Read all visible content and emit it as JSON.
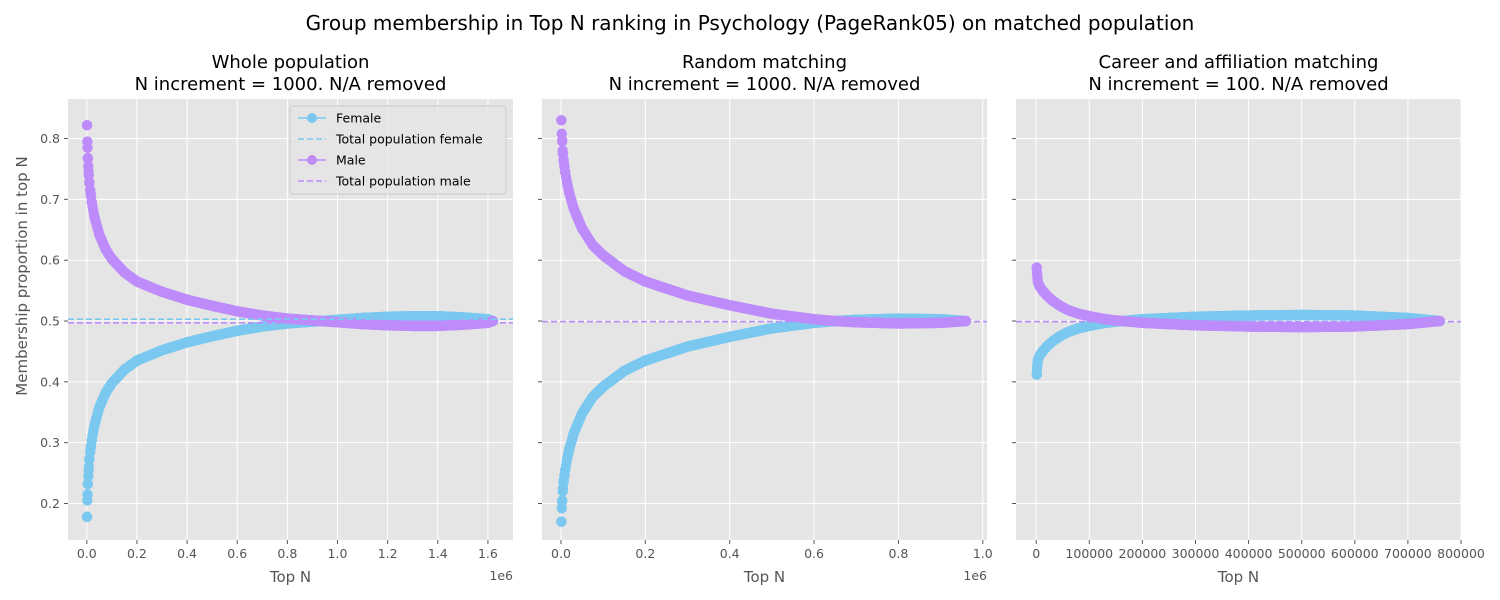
{
  "figure_title": "Group membership in Top N ranking in Psychology (PageRank05) on matched population",
  "colors": {
    "female": "#7ac8f0",
    "male": "#be8cfa",
    "panel_bg": "#e5e5e5",
    "grid": "#ffffff"
  },
  "ylabel": "Membership proportion in top N",
  "legend": {
    "female": "Female",
    "total_female": "Total population female",
    "male": "Male",
    "total_male": "Total population male"
  },
  "chart_data": [
    {
      "type": "line",
      "title_line1": "Whole population",
      "title_line2": "N increment = 1000. N/A removed",
      "xlabel": "Top N",
      "x_offset_text": "1e6",
      "x_scale": 1000000,
      "xlim": [
        -75000,
        1700000
      ],
      "ylim": [
        0.14,
        0.865
      ],
      "xticks": [
        0,
        200000,
        400000,
        600000,
        800000,
        1000000,
        1200000,
        1400000,
        1600000
      ],
      "xtick_labels": [
        "0.0",
        "0.2",
        "0.4",
        "0.6",
        "0.8",
        "1.0",
        "1.2",
        "1.4",
        "1.6"
      ],
      "yticks": [
        0.2,
        0.3,
        0.4,
        0.5,
        0.6,
        0.7,
        0.8
      ],
      "ytick_labels": [
        "0.2",
        "0.3",
        "0.4",
        "0.5",
        "0.6",
        "0.7",
        "0.8"
      ],
      "hlines": {
        "female": 0.503,
        "male": 0.497
      },
      "legend_placement": "top-right",
      "series": [
        {
          "name": "Female",
          "color_key": "female",
          "x": [
            1000,
            2000,
            3000,
            4000,
            6000,
            8000,
            10000,
            15000,
            20000,
            30000,
            50000,
            75000,
            100000,
            150000,
            200000,
            300000,
            400000,
            500000,
            600000,
            700000,
            800000,
            900000,
            1000000,
            1100000,
            1200000,
            1300000,
            1400000,
            1500000,
            1600000,
            1620000
          ],
          "y": [
            0.178,
            0.205,
            0.215,
            0.232,
            0.245,
            0.26,
            0.272,
            0.29,
            0.305,
            0.328,
            0.358,
            0.382,
            0.398,
            0.42,
            0.435,
            0.452,
            0.465,
            0.475,
            0.484,
            0.491,
            0.496,
            0.499,
            0.502,
            0.505,
            0.507,
            0.508,
            0.508,
            0.506,
            0.503,
            0.5
          ]
        },
        {
          "name": "Male",
          "color_key": "male",
          "x": [
            1000,
            2000,
            3000,
            4000,
            6000,
            8000,
            10000,
            15000,
            20000,
            30000,
            50000,
            75000,
            100000,
            150000,
            200000,
            300000,
            400000,
            500000,
            600000,
            700000,
            800000,
            900000,
            1000000,
            1100000,
            1200000,
            1300000,
            1400000,
            1500000,
            1600000,
            1620000
          ],
          "y": [
            0.822,
            0.795,
            0.785,
            0.768,
            0.755,
            0.74,
            0.728,
            0.71,
            0.695,
            0.672,
            0.642,
            0.618,
            0.602,
            0.58,
            0.565,
            0.548,
            0.535,
            0.525,
            0.516,
            0.509,
            0.504,
            0.501,
            0.498,
            0.495,
            0.493,
            0.492,
            0.492,
            0.494,
            0.497,
            0.5
          ]
        }
      ]
    },
    {
      "type": "line",
      "title_line1": "Random matching",
      "title_line2": "N increment = 1000. N/A removed",
      "xlabel": "Top N",
      "x_offset_text": "1e6",
      "x_scale": 1000000,
      "xlim": [
        -45000,
        1010000
      ],
      "ylim": [
        0.14,
        0.865
      ],
      "xticks": [
        0,
        200000,
        400000,
        600000,
        800000,
        1000000
      ],
      "xtick_labels": [
        "0.0",
        "0.2",
        "0.4",
        "0.6",
        "0.8",
        "1.0"
      ],
      "yticks": [
        0.2,
        0.3,
        0.4,
        0.5,
        0.6,
        0.7,
        0.8
      ],
      "ytick_labels": [
        "",
        "",
        "",
        "",
        "",
        "",
        ""
      ],
      "hlines": {
        "female": 0.499,
        "male": 0.499
      },
      "legend_placement": "none",
      "series": [
        {
          "name": "Female",
          "color_key": "female",
          "x": [
            1000,
            2000,
            3000,
            4000,
            6000,
            8000,
            10000,
            15000,
            20000,
            30000,
            50000,
            75000,
            100000,
            150000,
            200000,
            300000,
            400000,
            500000,
            600000,
            650000,
            700000,
            800000,
            900000,
            960000
          ],
          "y": [
            0.17,
            0.192,
            0.205,
            0.22,
            0.235,
            0.245,
            0.255,
            0.275,
            0.29,
            0.315,
            0.348,
            0.375,
            0.392,
            0.418,
            0.435,
            0.458,
            0.474,
            0.488,
            0.497,
            0.5,
            0.502,
            0.504,
            0.503,
            0.5
          ]
        },
        {
          "name": "Male",
          "color_key": "male",
          "x": [
            1000,
            2000,
            3000,
            4000,
            6000,
            8000,
            10000,
            15000,
            20000,
            30000,
            50000,
            75000,
            100000,
            150000,
            200000,
            300000,
            400000,
            500000,
            600000,
            650000,
            700000,
            800000,
            900000,
            960000
          ],
          "y": [
            0.83,
            0.808,
            0.795,
            0.78,
            0.765,
            0.755,
            0.745,
            0.725,
            0.71,
            0.685,
            0.652,
            0.625,
            0.608,
            0.582,
            0.565,
            0.542,
            0.526,
            0.512,
            0.503,
            0.5,
            0.498,
            0.496,
            0.497,
            0.5
          ]
        }
      ]
    },
    {
      "type": "line",
      "title_line1": "Career and affiliation matching",
      "title_line2": "N increment = 100. N/A removed",
      "xlabel": "Top N",
      "x_offset_text": "",
      "x_scale": 1,
      "xlim": [
        -38000,
        800000
      ],
      "ylim": [
        0.14,
        0.865
      ],
      "xticks": [
        0,
        100000,
        200000,
        300000,
        400000,
        500000,
        600000,
        700000,
        800000
      ],
      "xtick_labels": [
        "0",
        "100000",
        "200000",
        "300000",
        "400000",
        "500000",
        "600000",
        "700000",
        "800000"
      ],
      "yticks": [
        0.2,
        0.3,
        0.4,
        0.5,
        0.6,
        0.7,
        0.8
      ],
      "ytick_labels": [
        "",
        "",
        "",
        "",
        "",
        "",
        ""
      ],
      "hlines": {
        "female": 0.499,
        "male": 0.499
      },
      "legend_placement": "none",
      "series": [
        {
          "name": "Female",
          "color_key": "female",
          "x": [
            1000,
            1500,
            2000,
            3000,
            5000,
            8000,
            12000,
            20000,
            30000,
            45000,
            60000,
            80000,
            100000,
            130000,
            150000,
            200000,
            300000,
            400000,
            500000,
            600000,
            700000,
            760000
          ],
          "y": [
            0.412,
            0.42,
            0.425,
            0.435,
            0.44,
            0.445,
            0.45,
            0.458,
            0.466,
            0.475,
            0.482,
            0.488,
            0.492,
            0.497,
            0.499,
            0.503,
            0.507,
            0.509,
            0.51,
            0.509,
            0.505,
            0.5
          ]
        },
        {
          "name": "Male",
          "color_key": "male",
          "x": [
            1000,
            1500,
            2000,
            3000,
            5000,
            8000,
            12000,
            20000,
            30000,
            45000,
            60000,
            80000,
            100000,
            130000,
            150000,
            200000,
            300000,
            400000,
            500000,
            600000,
            700000,
            760000
          ],
          "y": [
            0.588,
            0.58,
            0.575,
            0.565,
            0.56,
            0.555,
            0.55,
            0.542,
            0.534,
            0.525,
            0.518,
            0.512,
            0.508,
            0.503,
            0.501,
            0.497,
            0.493,
            0.491,
            0.49,
            0.491,
            0.495,
            0.5
          ]
        }
      ]
    }
  ]
}
